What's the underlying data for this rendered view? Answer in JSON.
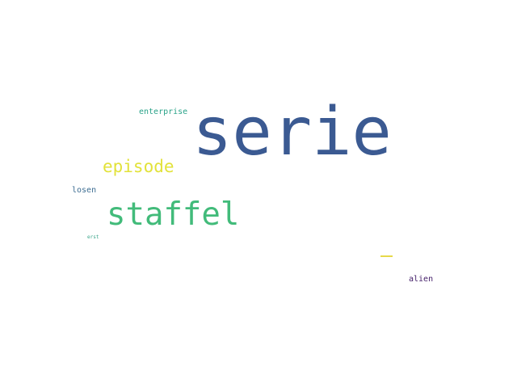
{
  "word_cloud": {
    "background": "#ffffff",
    "words": {
      "serie": {
        "text": "serie",
        "color": "#3b5a92"
      },
      "staffel": {
        "text": "staffel",
        "color": "#42bb7a"
      },
      "episode": {
        "text": "episode",
        "color": "#e2e23a"
      },
      "enterprise": {
        "text": "enterprise",
        "color": "#2aa389"
      },
      "losen": {
        "text": "losen",
        "color": "#3d6d92"
      },
      "alien": {
        "text": "alien",
        "color": "#45206a"
      },
      "erst": {
        "text": "erst",
        "color": "#3aa68a"
      },
      "tiny_mark": {
        "color": "#e6d94a"
      }
    }
  }
}
